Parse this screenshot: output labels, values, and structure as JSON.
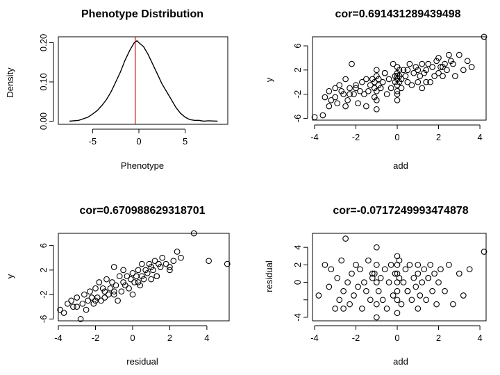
{
  "chart_data": [
    {
      "id": "p1",
      "type": "line",
      "title": "Phenotype Distribution",
      "xlabel": "Phenotype",
      "ylabel": "Density",
      "xlim": [
        -8.7,
        9.6
      ],
      "ylim": [
        -0.008,
        0.215
      ],
      "xticks": [
        -5,
        0,
        5
      ],
      "yticks": [
        0.0,
        0.1,
        0.2
      ],
      "ytick_labels": [
        "0.00",
        "0.10",
        "0.20"
      ],
      "vline_x": -0.4,
      "vline_color": "#cc0000",
      "x": [
        -7.5,
        -6.5,
        -5.5,
        -5,
        -4.5,
        -4,
        -3.5,
        -3,
        -2.5,
        -2,
        -1.5,
        -1,
        -0.5,
        -0.2,
        0,
        0.5,
        1,
        1.5,
        2,
        2.5,
        3,
        3.5,
        4,
        4.5,
        5,
        5.5,
        6,
        6.5,
        7,
        7.5,
        8.5
      ],
      "y": [
        0.0,
        0.002,
        0.01,
        0.018,
        0.027,
        0.04,
        0.055,
        0.075,
        0.1,
        0.125,
        0.155,
        0.18,
        0.2,
        0.205,
        0.2,
        0.19,
        0.17,
        0.145,
        0.12,
        0.095,
        0.075,
        0.055,
        0.035,
        0.02,
        0.01,
        0.004,
        0.002,
        0.002,
        0.0,
        0.001,
        0.0
      ]
    },
    {
      "id": "p2",
      "type": "scatter",
      "title": "cor=0.691431289439498",
      "xlabel": "add",
      "ylabel": "y",
      "xlim": [
        -4.1,
        4.3
      ],
      "ylim": [
        -6.3,
        7.5
      ],
      "xticks": [
        -4,
        -2,
        0,
        2,
        4
      ],
      "yticks": [
        -6,
        -2,
        2,
        6
      ],
      "x": [
        -4,
        -3.6,
        -3.5,
        -3.3,
        -3.3,
        -3.2,
        -3,
        -3,
        -2.9,
        -2.8,
        -2.7,
        -2.6,
        -2.5,
        -2.5,
        -2.4,
        -2.3,
        -2.2,
        -2.1,
        -2,
        -2,
        -1.9,
        -1.8,
        -1.7,
        -1.6,
        -1.5,
        -1.4,
        -1.3,
        -1.2,
        -1.1,
        -1.1,
        -1.1,
        -1,
        -1,
        -1,
        -1,
        -1,
        -0.9,
        -0.9,
        -0.8,
        -0.7,
        -0.6,
        -0.5,
        -0.4,
        -0.3,
        -0.2,
        -0.1,
        -0.1,
        0,
        0,
        0,
        0,
        0,
        0,
        0,
        0,
        0.1,
        0.1,
        0.1,
        0.2,
        0.2,
        0.3,
        0.4,
        0.5,
        0.6,
        0.7,
        0.8,
        0.9,
        1,
        1,
        1.1,
        1.2,
        1.2,
        1.3,
        1.4,
        1.5,
        1.6,
        1.7,
        1.8,
        1.9,
        2,
        2,
        2.1,
        2.2,
        2.3,
        2.4,
        2.5,
        2.6,
        2.7,
        2.8,
        3,
        3.2,
        3.4,
        3.6,
        4.2,
        -2.3,
        -1.5,
        -0.6,
        0.5,
        1.4,
        2.2
      ],
      "y": [
        -5.8,
        -5.5,
        -2.5,
        -1.5,
        -4,
        -3,
        -2.5,
        -1,
        -3.5,
        -0.5,
        -1.5,
        -2,
        0.5,
        -4,
        -3,
        -1,
        3,
        -2,
        -1,
        -0.5,
        -3.5,
        -1.5,
        0,
        -2,
        -4,
        -1.5,
        -0.5,
        0.5,
        -2.5,
        -1,
        0,
        -3,
        -1.5,
        1,
        2,
        -4.5,
        -0.5,
        0.5,
        -1,
        0,
        1.5,
        -2,
        0.5,
        -1,
        3,
        0,
        1,
        -3,
        -1.5,
        -0.5,
        0.5,
        1,
        1.5,
        2.5,
        -2,
        0,
        1,
        2,
        -1,
        0.5,
        2,
        1,
        0,
        3,
        -0.5,
        1.5,
        2.5,
        0,
        2,
        1,
        -1,
        3,
        1.5,
        2,
        3,
        0,
        2.5,
        1,
        3.5,
        1.5,
        4,
        2.5,
        1,
        3,
        2,
        4.5,
        3.5,
        3,
        1,
        4.5,
        2,
        3.5,
        2.5,
        7.5,
        -2,
        0.5,
        1.5,
        2,
        0,
        2.5
      ]
    },
    {
      "id": "p3",
      "type": "scatter",
      "title": "cor=0.670988629318701",
      "xlabel": "residual",
      "ylabel": "y",
      "xlim": [
        -4,
        5.2
      ],
      "ylim": [
        -6.3,
        8
      ],
      "xticks": [
        -4,
        -2,
        0,
        2,
        4
      ],
      "yticks": [
        -6,
        -2,
        2,
        6
      ],
      "x": [
        -3.9,
        -3.7,
        -3.5,
        -3.3,
        -3.2,
        -3,
        -2.8,
        -2.7,
        -2.6,
        -2.5,
        -2.4,
        -2.3,
        -2.2,
        -2.1,
        -2,
        -1.9,
        -1.8,
        -1.7,
        -1.6,
        -1.5,
        -1.5,
        -1.4,
        -1.3,
        -1.2,
        -1.1,
        -1,
        -1,
        -0.9,
        -0.8,
        -0.7,
        -0.6,
        -0.5,
        -0.5,
        -0.4,
        -0.3,
        -0.2,
        -0.1,
        0,
        0,
        0.1,
        0.2,
        0.3,
        0.4,
        0.5,
        0.5,
        0.6,
        0.7,
        0.8,
        0.9,
        1,
        1,
        1.1,
        1.2,
        1.3,
        1.4,
        1.5,
        1.6,
        1.8,
        2,
        2.2,
        2.4,
        2.6,
        3.3,
        4.1,
        5.1,
        -3,
        -2,
        -1,
        0.3,
        1.3,
        2
      ],
      "y": [
        -4.5,
        -5,
        -3.5,
        -3,
        -4,
        -2.5,
        -6,
        -3.5,
        -2,
        -4.5,
        -3,
        -1.5,
        -2.5,
        -3.5,
        -1,
        -2.5,
        0,
        -3,
        -1,
        -1.5,
        -2.5,
        0.5,
        -2,
        -1,
        0,
        -1.5,
        2.5,
        -0.5,
        -3,
        1,
        -1.5,
        0,
        2,
        -0.5,
        1,
        -1,
        0.5,
        -2,
        1.5,
        0,
        1,
        2,
        -0.5,
        1,
        3,
        0.5,
        2,
        1.5,
        3,
        0.5,
        2.5,
        2,
        3.5,
        1,
        3,
        2.5,
        4,
        3,
        2.5,
        3.5,
        5,
        4,
        8,
        3.5,
        3,
        -4,
        -3,
        -2,
        0,
        1,
        2
      ]
    },
    {
      "id": "p4",
      "type": "scatter",
      "title": "cor=-0.0717249993474878",
      "xlabel": "add",
      "ylabel": "residual",
      "xlim": [
        -4.1,
        4.3
      ],
      "ylim": [
        -4.4,
        5.6
      ],
      "xticks": [
        -4,
        -2,
        0,
        2,
        4
      ],
      "yticks": [
        -4,
        -2,
        0,
        2,
        4
      ],
      "ytick_labels": [
        "-4",
        "",
        "0",
        "2",
        "4"
      ],
      "x": [
        -3.8,
        -3.5,
        -3.3,
        -3.2,
        -3,
        -2.9,
        -2.8,
        -2.7,
        -2.6,
        -2.5,
        -2.4,
        -2.3,
        -2.2,
        -2.1,
        -2,
        -1.9,
        -1.8,
        -1.7,
        -1.6,
        -1.5,
        -1.4,
        -1.3,
        -1.2,
        -1.1,
        -1,
        -1,
        -1,
        -1,
        -1,
        -0.9,
        -0.8,
        -0.7,
        -0.6,
        -0.5,
        -0.4,
        -0.3,
        -0.2,
        -0.1,
        0,
        0,
        0,
        0,
        0,
        0,
        0,
        0.1,
        0.1,
        0.2,
        0.3,
        0.4,
        0.5,
        0.6,
        0.7,
        0.8,
        0.9,
        1,
        1,
        1,
        1.1,
        1.2,
        1.3,
        1.4,
        1.5,
        1.6,
        1.7,
        1.8,
        1.9,
        2,
        2.1,
        2.3,
        2.5,
        2.7,
        3,
        3.2,
        3.5,
        4.2,
        -2.6,
        -1.2,
        0.5,
        1.5
      ],
      "y": [
        -1.5,
        2,
        -0.5,
        1.5,
        -3,
        0.5,
        -2,
        2.5,
        -1,
        5,
        0,
        -2.5,
        1,
        -1.5,
        2,
        -0.5,
        1.5,
        -3,
        0,
        -1,
        2.5,
        -2,
        0.5,
        1,
        -4,
        -2.5,
        0,
        2,
        4,
        -1,
        0.5,
        -2,
        1.5,
        -3,
        0,
        2,
        -1.5,
        1,
        -3.5,
        -2,
        0,
        1,
        2,
        3,
        -1,
        0.5,
        2.5,
        -2.5,
        0,
        1.5,
        -1,
        2,
        -2,
        0.5,
        -0.5,
        -3,
        1,
        2,
        -1.5,
        0,
        1.5,
        -2,
        0.5,
        2,
        -1,
        1,
        -2.5,
        0,
        1.5,
        -1,
        2,
        -2.5,
        1,
        -1.5,
        1.5,
        3.5,
        -3,
        1,
        -1,
        0.5
      ]
    }
  ]
}
